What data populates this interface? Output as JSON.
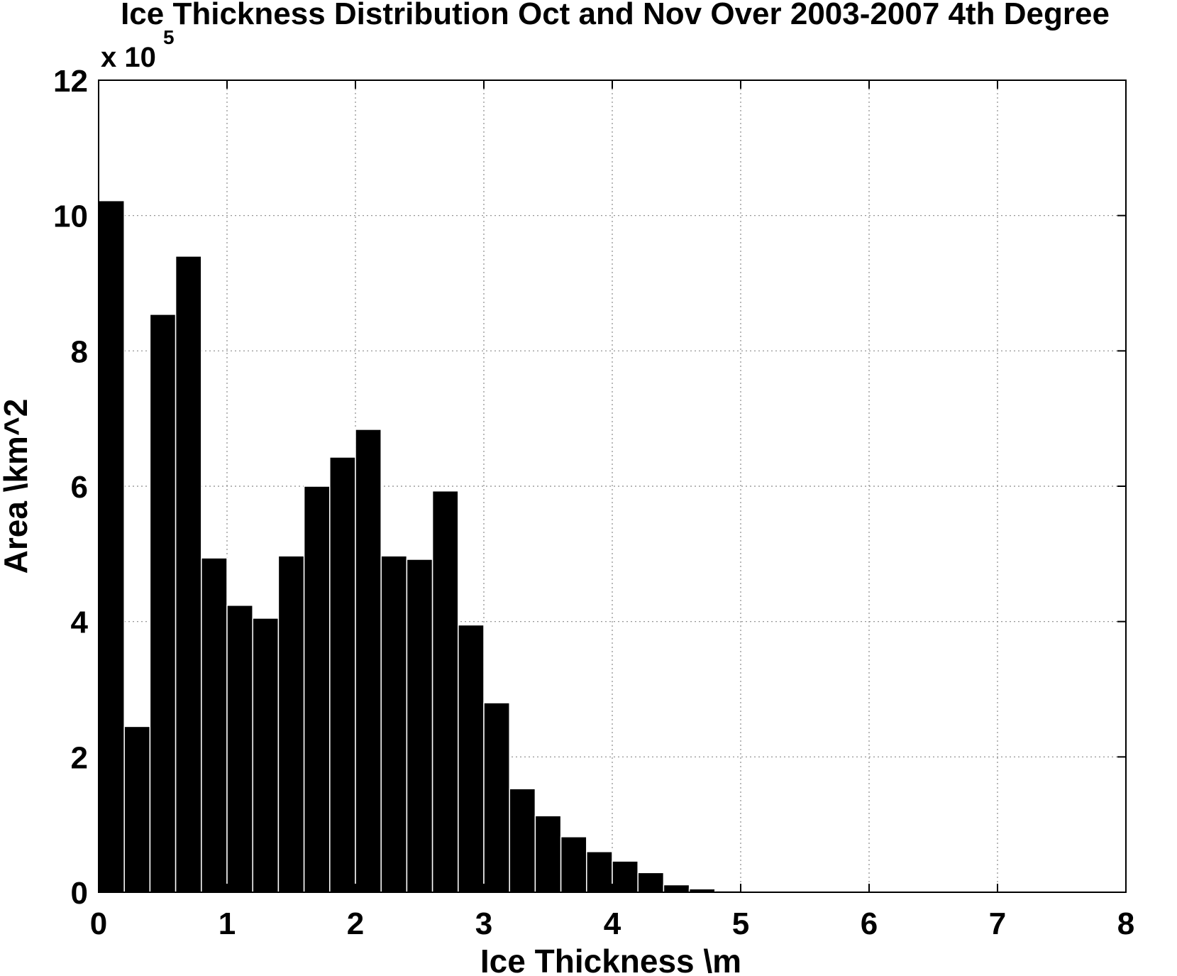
{
  "chart_data": {
    "type": "bar",
    "title": "Ice Thickness Distribution Oct and Nov Over 2003-2007 4th Degree",
    "xlabel": "Ice Thickness \\m",
    "ylabel": "Area \\km^2",
    "y_multiplier_base": "x 10",
    "y_multiplier_exp": "5",
    "xlim": [
      0,
      8
    ],
    "ylim": [
      0,
      12
    ],
    "xticks": [
      "0",
      "1",
      "2",
      "3",
      "4",
      "5",
      "6",
      "7",
      "8"
    ],
    "yticks": [
      "0",
      "2",
      "4",
      "6",
      "8",
      "10",
      "12"
    ],
    "grid": true,
    "bar_color": "#000000",
    "bin_width": 0.2,
    "x": [
      0.1,
      0.3,
      0.5,
      0.7,
      0.9,
      1.1,
      1.3,
      1.5,
      1.7,
      1.9,
      2.1,
      2.3,
      2.5,
      2.7,
      2.9,
      3.1,
      3.3,
      3.5,
      3.7,
      3.9,
      4.1,
      4.3,
      4.5,
      4.7,
      4.9
    ],
    "values": [
      10.22,
      2.45,
      8.54,
      9.4,
      4.94,
      4.24,
      4.05,
      4.97,
      6.0,
      6.43,
      6.84,
      4.97,
      4.92,
      5.93,
      3.95,
      2.8,
      1.53,
      1.13,
      0.82,
      0.6,
      0.46,
      0.29,
      0.11,
      0.05,
      0.02
    ]
  }
}
